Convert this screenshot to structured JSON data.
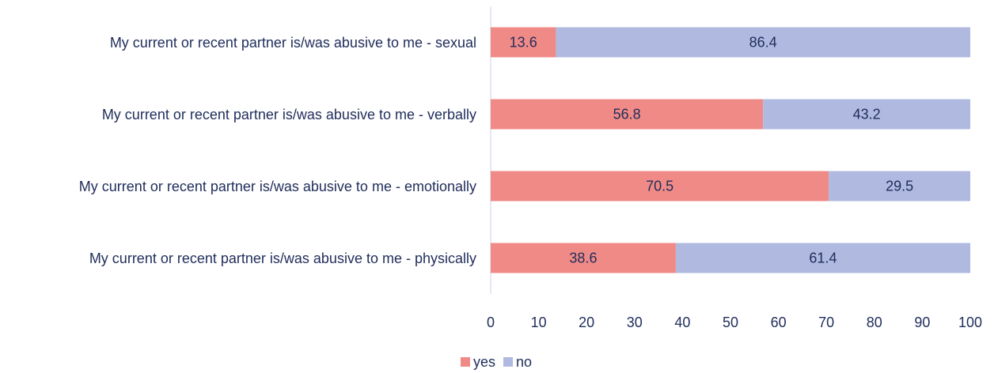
{
  "chart_data": {
    "type": "stacked-barh",
    "categories": [
      "My current or recent partner is/was abusive to me - sexual",
      "My current or recent partner is/was abusive to me - verbally",
      "My current or recent partner is/was abusive to me - emotionally",
      "My current or recent partner is/was abusive to me - physically"
    ],
    "series": [
      {
        "name": "yes",
        "color": "#f08a87",
        "values": [
          13.6,
          56.8,
          70.5,
          38.6
        ]
      },
      {
        "name": "no",
        "color": "#b0b9e0",
        "values": [
          86.4,
          43.2,
          29.5,
          61.4
        ]
      }
    ],
    "xlim": [
      0,
      100
    ],
    "xticks": [
      0,
      10,
      20,
      30,
      40,
      50,
      60,
      70,
      80,
      90,
      100
    ],
    "legend": "bottom"
  }
}
